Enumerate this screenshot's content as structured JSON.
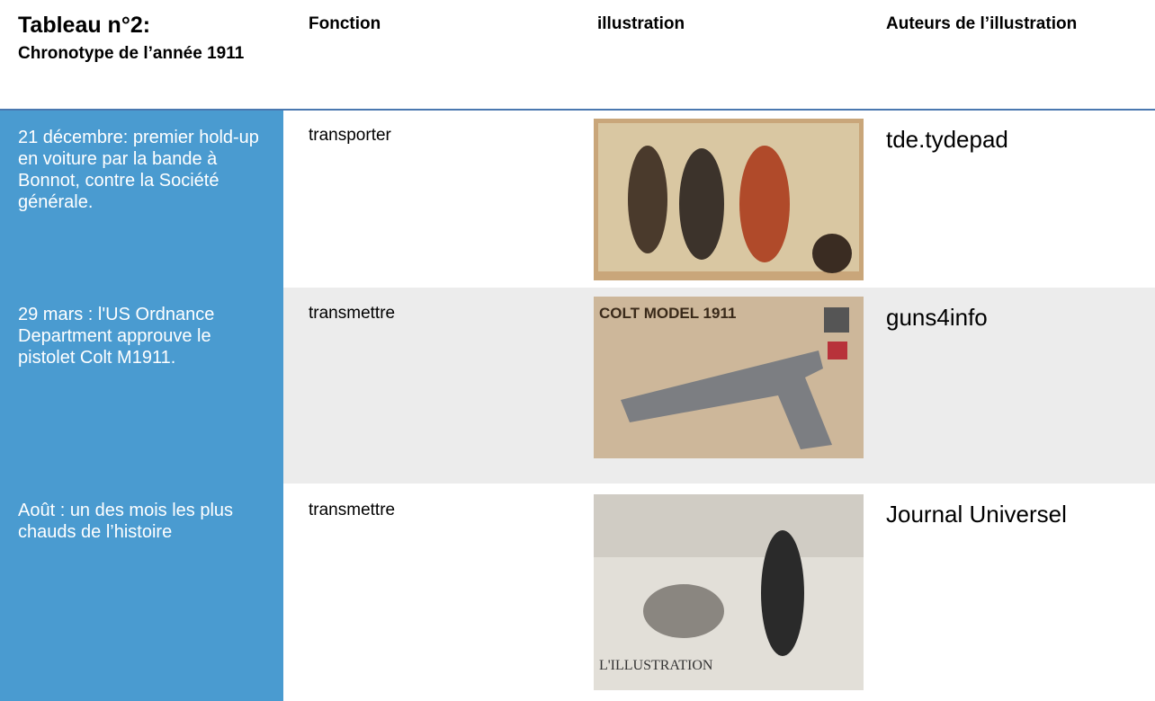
{
  "header": {
    "title": "Tableau n°2:",
    "subtitle": "Chronotype de l’année 1911",
    "columns": [
      "Fonction",
      "illustration",
      "Auteurs de l’illustration"
    ]
  },
  "table": {
    "rows": [
      [
        "21 décembre: premier hold-up en voiture par la bande à Bonnot, contre la Société générale.",
        "transporter",
        "tde.tydepad"
      ],
      [
        "29 mars : l'US Ordnance Department approuve le pistolet Colt M1911.",
        "transmettre",
        "guns4info"
      ],
      [
        "Août : un des mois les plus chauds de l’histoire",
        "transmettre",
        "Journal Universel"
      ]
    ],
    "image_texts": [
      "COLT MODEL 1911",
      "L'ILLUSTRATION"
    ]
  }
}
